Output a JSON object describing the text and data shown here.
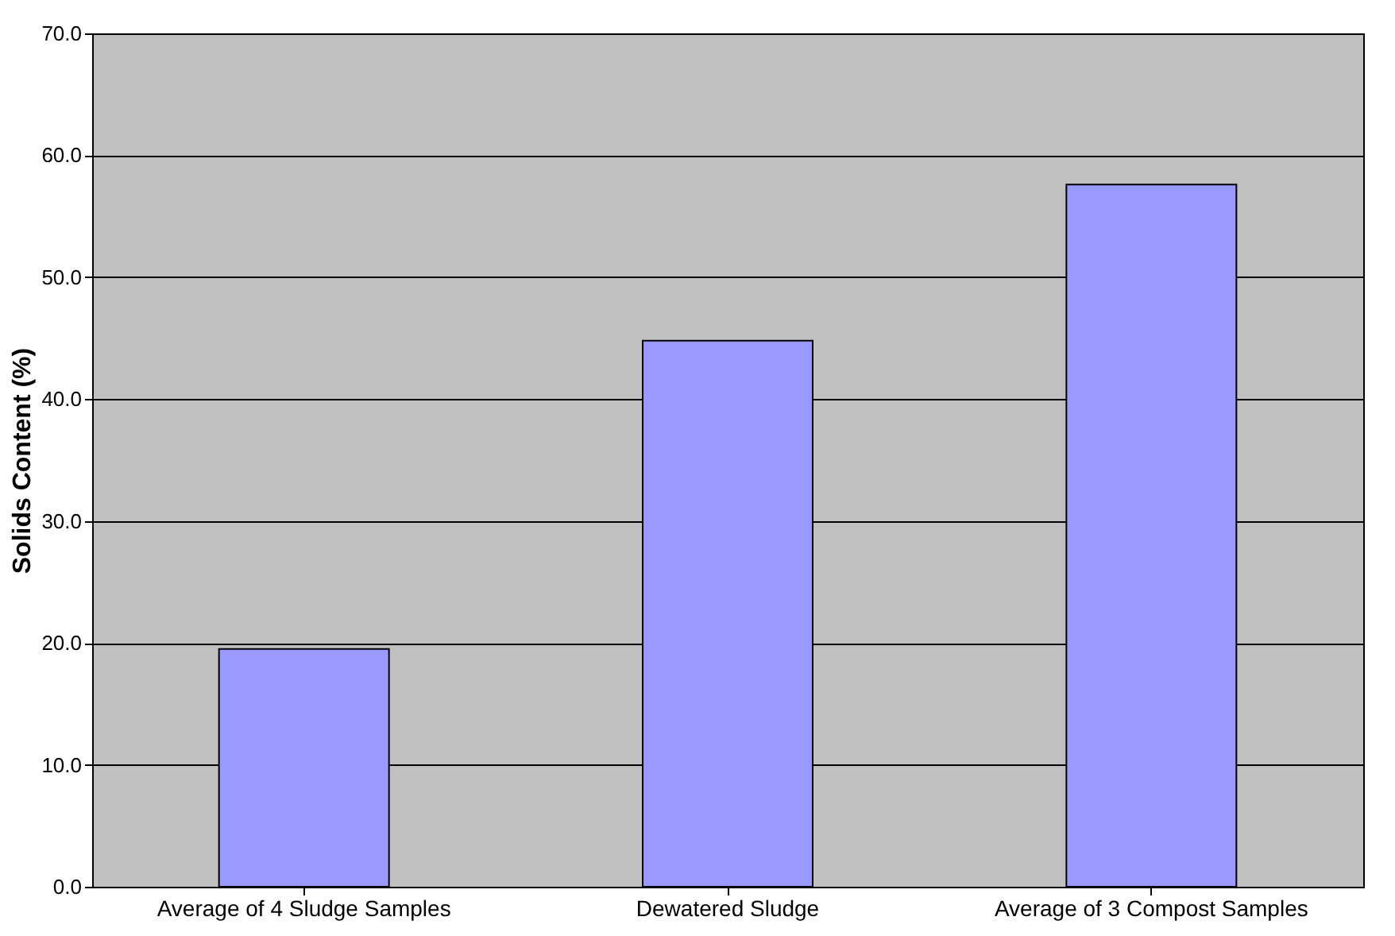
{
  "chart_data": {
    "type": "bar",
    "ylabel": "Solids Content (%)",
    "categories": [
      "Average of 4 Sludge Samples",
      "Dewatered Sludge",
      "Average of 3 Compost Samples"
    ],
    "values": [
      19.5,
      44.8,
      57.6
    ],
    "color": "#9999ff",
    "ylim": [
      0,
      70
    ],
    "yticks": [
      {
        "value": 0,
        "label": "0.0"
      },
      {
        "value": 10,
        "label": "10.0"
      },
      {
        "value": 20,
        "label": "20.0"
      },
      {
        "value": 30,
        "label": "30.0"
      },
      {
        "value": 40,
        "label": "40.0"
      },
      {
        "value": 50,
        "label": "50.0"
      },
      {
        "value": 60,
        "label": "60.0"
      },
      {
        "value": 70,
        "label": "70.0"
      }
    ],
    "grid": "y"
  }
}
